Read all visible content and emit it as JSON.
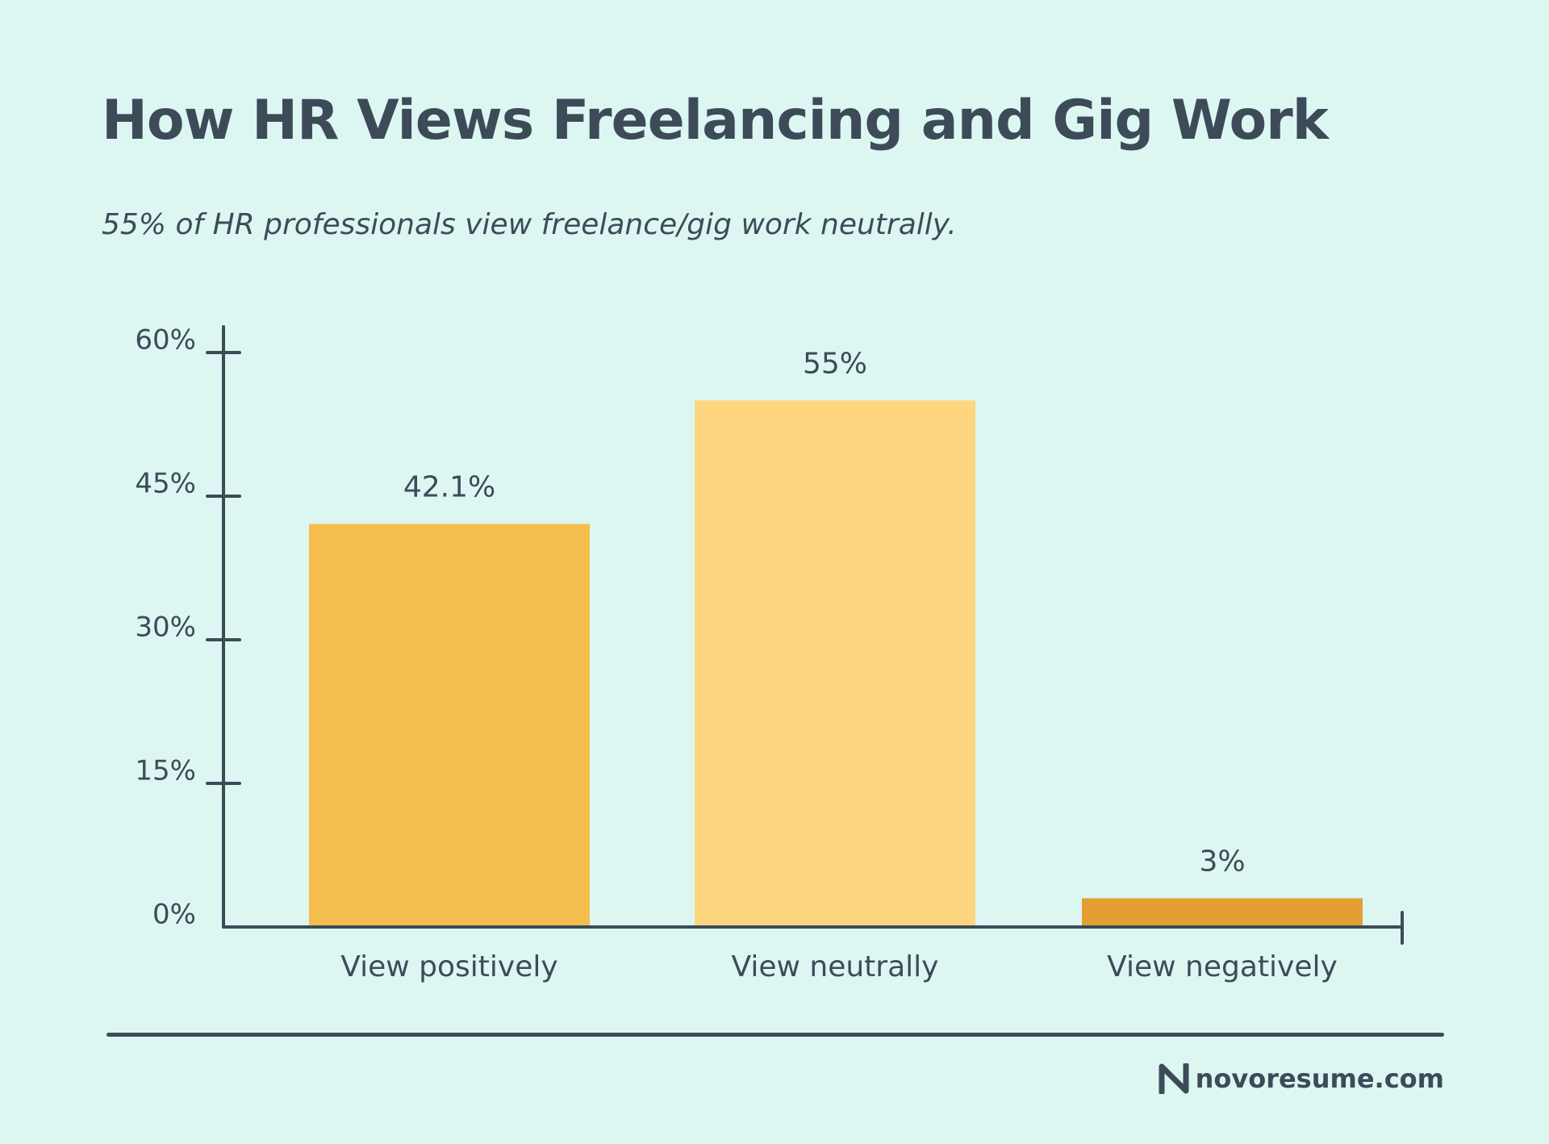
{
  "header": {
    "title": "How HR Views Freelancing and Gig Work",
    "subtitle": "55% of HR professionals view freelance/gig work neutrally."
  },
  "footer": {
    "brand": "novoresume.com",
    "logo_icon": "novoresume-n-logo"
  },
  "colors": {
    "background": "#dcf7f2",
    "text": "#3d4b59",
    "bars": [
      "#f4bd4d",
      "#fdd67f",
      "#e39f31"
    ]
  },
  "chart_data": {
    "type": "bar",
    "title": "",
    "xlabel": "",
    "ylabel": "",
    "categories": [
      "View positively",
      "View neutrally",
      "View negatively"
    ],
    "values": [
      42.1,
      55,
      3
    ],
    "data_labels": [
      "42.1%",
      "55%",
      "3%"
    ],
    "ylim": [
      0,
      60
    ],
    "yticks": [
      0,
      15,
      30,
      45,
      60
    ],
    "ytick_labels": [
      "0%",
      "15%",
      "30%",
      "45%",
      "60%"
    ],
    "grid": false,
    "legend": "none"
  }
}
